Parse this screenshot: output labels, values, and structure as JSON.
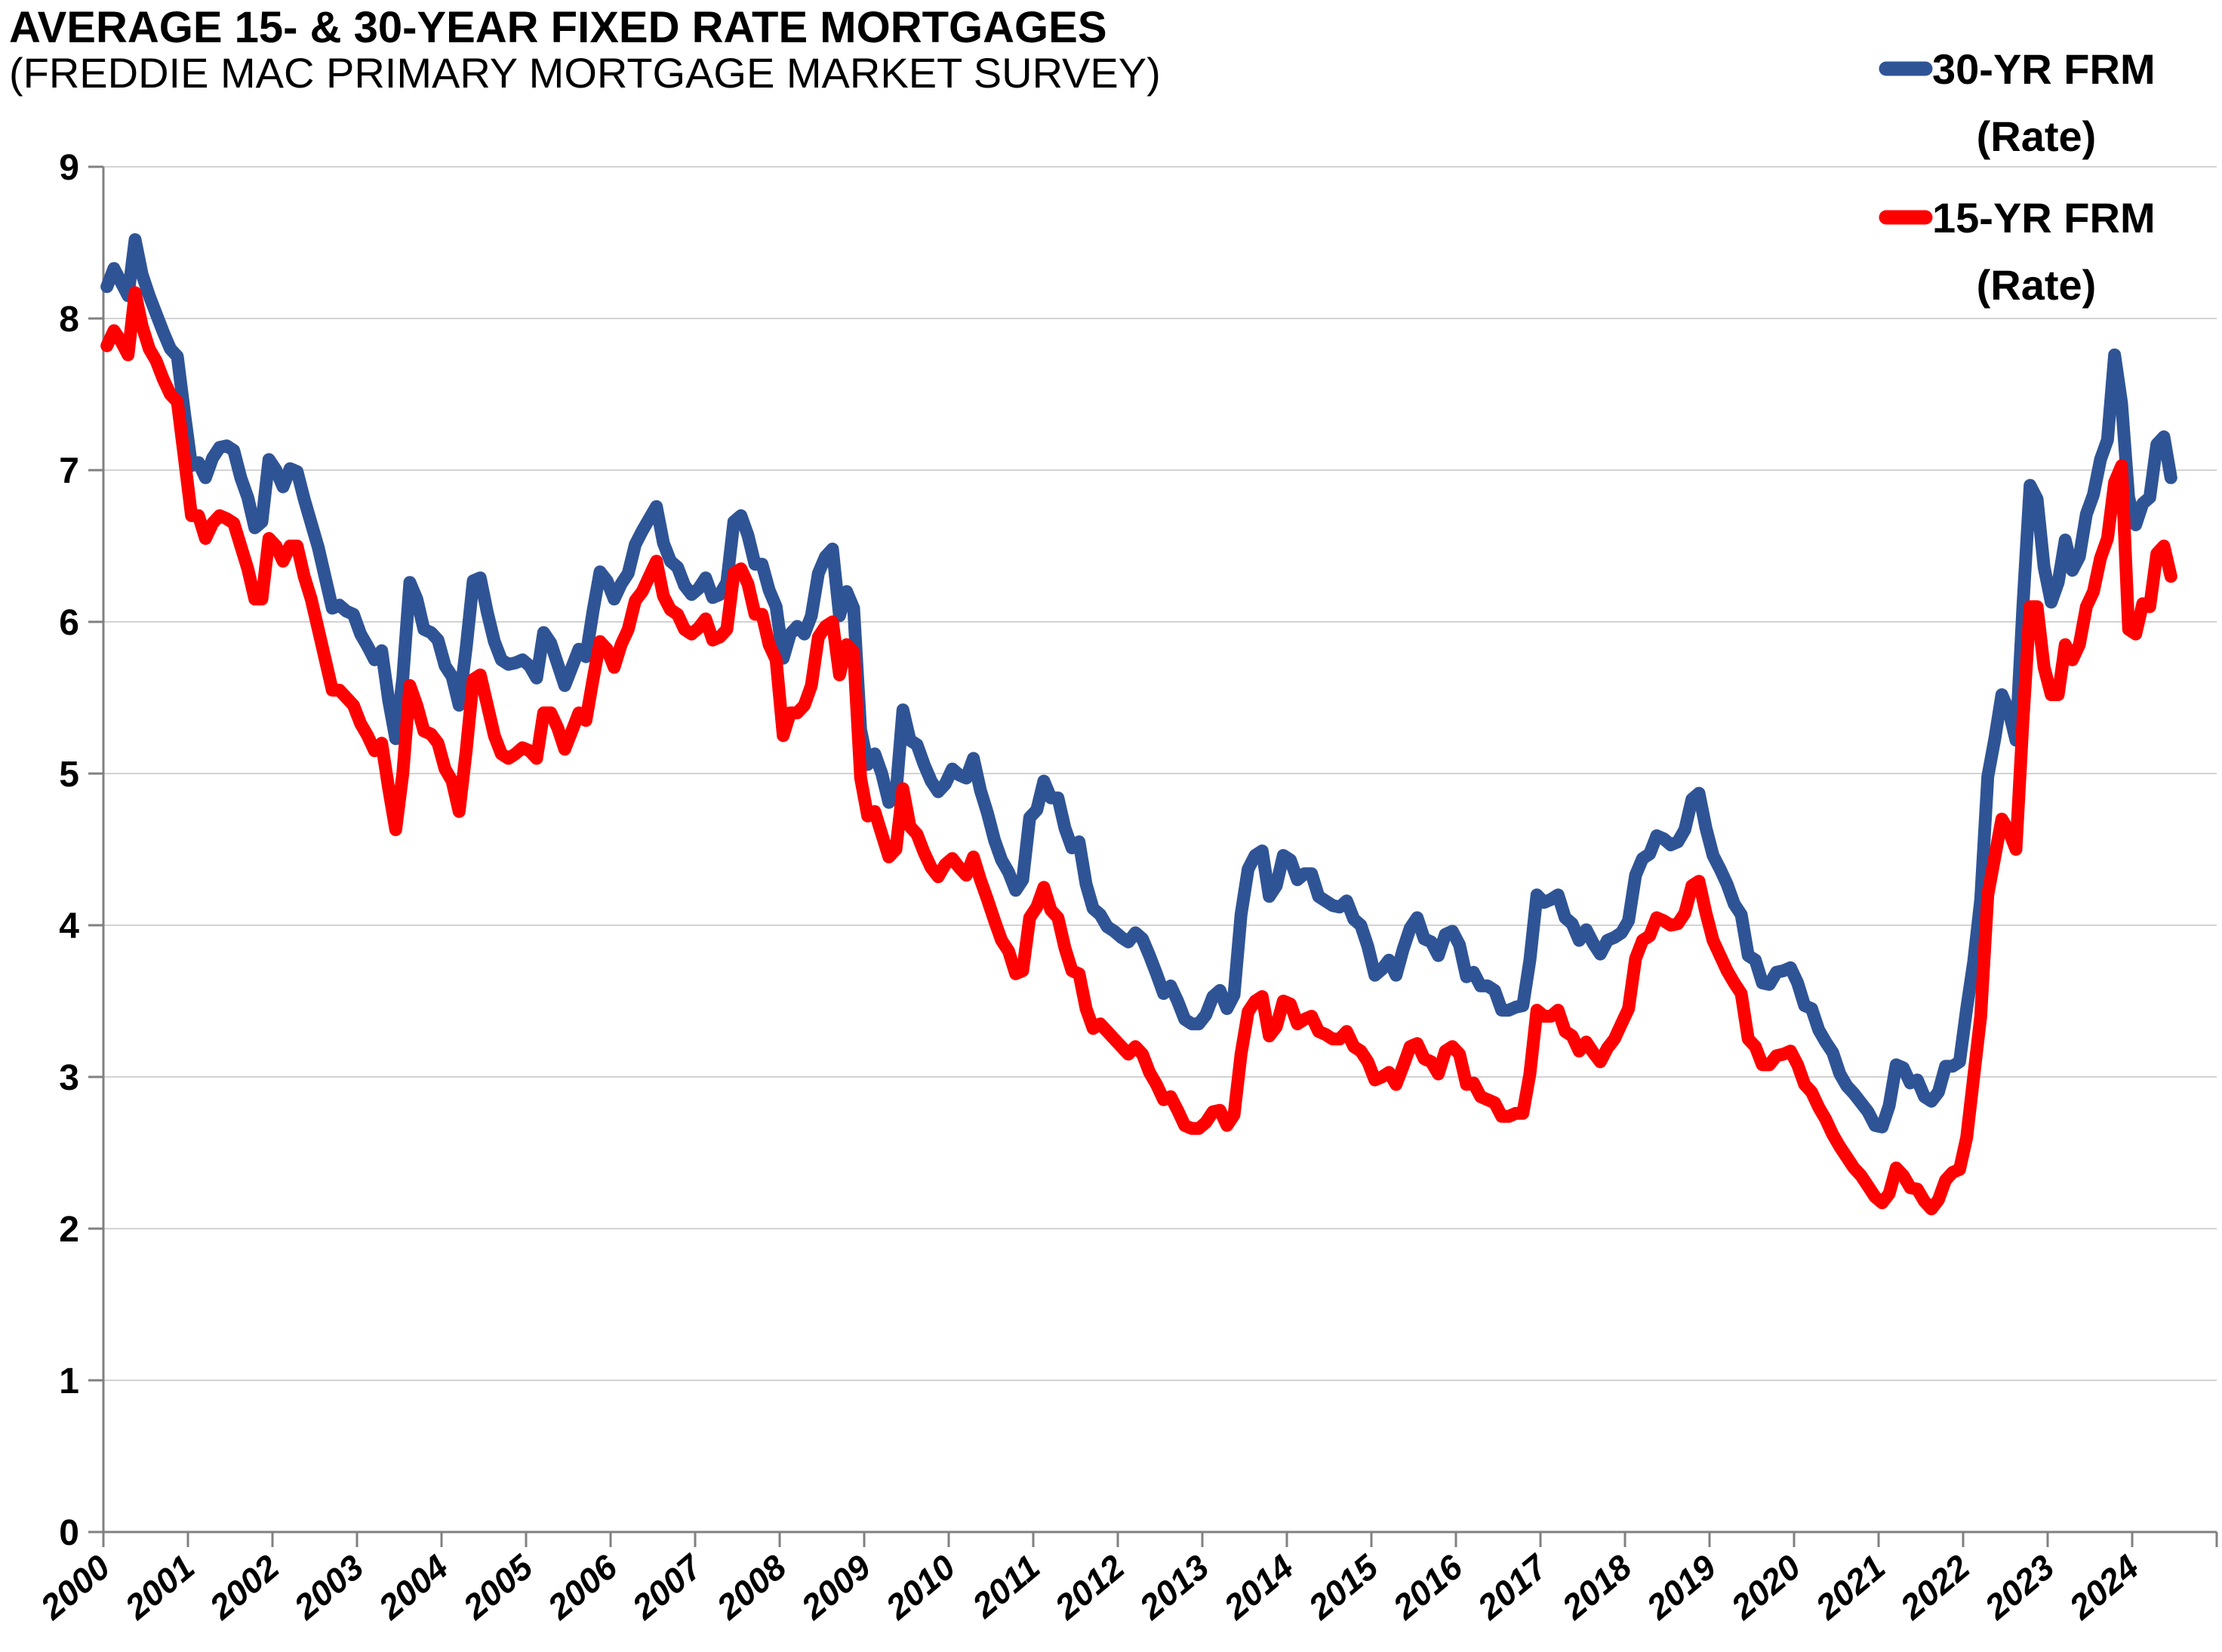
{
  "title": {
    "main": "AVERAGE 15- & 30-YEAR FIXED RATE MORTGAGES",
    "sub": "(FREDDIE MAC PRIMARY MORTGAGE MARKET SURVEY)"
  },
  "legend": {
    "items": [
      {
        "label": "30-YR FRM",
        "sublabel": "(Rate)",
        "color": "#2F5496"
      },
      {
        "label": "15-YR FRM",
        "sublabel": "(Rate)",
        "color": "#FF0000"
      }
    ]
  },
  "chart_data": {
    "type": "line",
    "title": "AVERAGE 15- & 30-YEAR FIXED RATE MORTGAGES",
    "subtitle": "(FREDDIE MAC PRIMARY MORTGAGE MARKET SURVEY)",
    "xlabel": "",
    "ylabel": "",
    "x": {
      "start_year": 2000,
      "frequency": "monthly",
      "tick_labels": [
        "2000",
        "2001",
        "2002",
        "2003",
        "2004",
        "2005",
        "2006",
        "2007",
        "2008",
        "2009",
        "2010",
        "2011",
        "2012",
        "2013",
        "2014",
        "2015",
        "2016",
        "2017",
        "2018",
        "2019",
        "2020",
        "2021",
        "2022",
        "2023",
        "2024"
      ]
    },
    "y": {
      "min": 0,
      "max": 9,
      "step": 1,
      "tick_labels": [
        "0",
        "1",
        "2",
        "3",
        "4",
        "5",
        "6",
        "7",
        "8",
        "9"
      ]
    },
    "grid": true,
    "legend_position": "top-right",
    "series": [
      {
        "name": "30-YR FRM (Rate)",
        "color": "#2F5496",
        "values": [
          8.21,
          8.33,
          8.24,
          8.15,
          8.52,
          8.29,
          8.15,
          8.03,
          7.91,
          7.8,
          7.75,
          7.38,
          7.03,
          7.05,
          6.95,
          7.08,
          7.15,
          7.16,
          7.13,
          6.95,
          6.82,
          6.62,
          6.66,
          7.07,
          7.0,
          6.89,
          7.01,
          6.99,
          6.81,
          6.65,
          6.49,
          6.29,
          6.09,
          6.11,
          6.07,
          6.05,
          5.92,
          5.84,
          5.75,
          5.81,
          5.48,
          5.23,
          5.63,
          6.26,
          6.15,
          5.95,
          5.93,
          5.88,
          5.71,
          5.64,
          5.45,
          5.83,
          6.27,
          6.29,
          6.06,
          5.87,
          5.75,
          5.72,
          5.73,
          5.75,
          5.71,
          5.63,
          5.93,
          5.86,
          5.72,
          5.58,
          5.7,
          5.82,
          5.77,
          6.07,
          6.33,
          6.27,
          6.15,
          6.25,
          6.32,
          6.51,
          6.6,
          6.68,
          6.76,
          6.52,
          6.4,
          6.36,
          6.24,
          6.18,
          6.22,
          6.29,
          6.16,
          6.18,
          6.26,
          6.66,
          6.7,
          6.57,
          6.38,
          6.38,
          6.21,
          6.1,
          5.76,
          5.92,
          5.97,
          5.92,
          6.04,
          6.32,
          6.43,
          6.48,
          6.04,
          6.2,
          6.09,
          5.29,
          5.06,
          5.13,
          5.0,
          4.81,
          4.86,
          5.42,
          5.22,
          5.19,
          5.06,
          4.95,
          4.88,
          4.93,
          5.03,
          4.99,
          4.97,
          5.1,
          4.89,
          4.74,
          4.56,
          4.43,
          4.35,
          4.23,
          4.3,
          4.71,
          4.76,
          4.95,
          4.84,
          4.84,
          4.64,
          4.51,
          4.55,
          4.27,
          4.11,
          4.07,
          3.99,
          3.96,
          3.92,
          3.89,
          3.95,
          3.91,
          3.8,
          3.68,
          3.55,
          3.6,
          3.5,
          3.38,
          3.35,
          3.35,
          3.41,
          3.53,
          3.57,
          3.45,
          3.54,
          4.07,
          4.37,
          4.46,
          4.49,
          4.19,
          4.26,
          4.46,
          4.43,
          4.3,
          4.34,
          4.34,
          4.19,
          4.16,
          4.13,
          4.12,
          4.16,
          4.04,
          4.0,
          3.86,
          3.67,
          3.71,
          3.77,
          3.67,
          3.84,
          3.98,
          4.05,
          3.91,
          3.89,
          3.8,
          3.94,
          3.96,
          3.87,
          3.66,
          3.69,
          3.6,
          3.6,
          3.57,
          3.44,
          3.44,
          3.46,
          3.47,
          3.77,
          4.2,
          4.15,
          4.17,
          4.2,
          4.05,
          4.01,
          3.9,
          3.97,
          3.88,
          3.81,
          3.9,
          3.92,
          3.95,
          4.03,
          4.33,
          4.44,
          4.47,
          4.59,
          4.57,
          4.53,
          4.55,
          4.63,
          4.83,
          4.87,
          4.64,
          4.46,
          4.37,
          4.27,
          4.14,
          4.07,
          3.8,
          3.77,
          3.62,
          3.61,
          3.69,
          3.7,
          3.72,
          3.62,
          3.47,
          3.45,
          3.31,
          3.23,
          3.16,
          3.02,
          2.94,
          2.89,
          2.83,
          2.77,
          2.68,
          2.67,
          2.81,
          3.08,
          3.06,
          2.96,
          2.98,
          2.87,
          2.84,
          2.9,
          3.07,
          3.07,
          3.1,
          3.45,
          3.76,
          4.17,
          4.98,
          5.23,
          5.52,
          5.41,
          5.22,
          6.11,
          6.9,
          6.81,
          6.36,
          6.13,
          6.26,
          6.54,
          6.34,
          6.43,
          6.71,
          6.84,
          7.07,
          7.2,
          7.76,
          7.44,
          6.82,
          6.64,
          6.78,
          6.82,
          7.17,
          7.22,
          6.95
        ]
      },
      {
        "name": "15-YR FRM (Rate)",
        "color": "#FF0000",
        "values": [
          7.82,
          7.92,
          7.85,
          7.76,
          8.17,
          7.95,
          7.8,
          7.72,
          7.6,
          7.5,
          7.45,
          7.08,
          6.7,
          6.7,
          6.55,
          6.65,
          6.7,
          6.68,
          6.65,
          6.5,
          6.35,
          6.15,
          6.15,
          6.55,
          6.5,
          6.4,
          6.5,
          6.5,
          6.3,
          6.15,
          5.95,
          5.75,
          5.55,
          5.55,
          5.5,
          5.45,
          5.33,
          5.25,
          5.15,
          5.2,
          4.9,
          4.63,
          5.0,
          5.58,
          5.45,
          5.28,
          5.26,
          5.2,
          5.03,
          4.95,
          4.75,
          5.15,
          5.62,
          5.65,
          5.45,
          5.25,
          5.13,
          5.1,
          5.13,
          5.17,
          5.15,
          5.1,
          5.4,
          5.4,
          5.3,
          5.16,
          5.28,
          5.4,
          5.35,
          5.62,
          5.87,
          5.82,
          5.7,
          5.85,
          5.95,
          6.14,
          6.2,
          6.3,
          6.4,
          6.17,
          6.08,
          6.05,
          5.95,
          5.92,
          5.96,
          6.02,
          5.88,
          5.9,
          5.95,
          6.32,
          6.35,
          6.25,
          6.05,
          6.05,
          5.85,
          5.75,
          5.25,
          5.4,
          5.4,
          5.45,
          5.58,
          5.9,
          5.97,
          6.0,
          5.65,
          5.85,
          5.8,
          4.97,
          4.72,
          4.75,
          4.6,
          4.45,
          4.5,
          4.9,
          4.65,
          4.6,
          4.48,
          4.38,
          4.32,
          4.4,
          4.44,
          4.38,
          4.33,
          4.45,
          4.3,
          4.17,
          4.03,
          3.9,
          3.83,
          3.68,
          3.7,
          4.05,
          4.12,
          4.25,
          4.1,
          4.05,
          3.85,
          3.7,
          3.68,
          3.45,
          3.32,
          3.35,
          3.3,
          3.25,
          3.2,
          3.15,
          3.2,
          3.15,
          3.03,
          2.95,
          2.85,
          2.87,
          2.78,
          2.68,
          2.66,
          2.66,
          2.7,
          2.77,
          2.78,
          2.68,
          2.75,
          3.15,
          3.43,
          3.5,
          3.53,
          3.27,
          3.33,
          3.5,
          3.48,
          3.35,
          3.38,
          3.4,
          3.3,
          3.28,
          3.25,
          3.25,
          3.3,
          3.2,
          3.17,
          3.1,
          2.98,
          3.0,
          3.03,
          2.95,
          3.07,
          3.2,
          3.22,
          3.12,
          3.1,
          3.02,
          3.17,
          3.2,
          3.15,
          2.95,
          2.96,
          2.87,
          2.85,
          2.83,
          2.74,
          2.74,
          2.76,
          2.76,
          3.02,
          3.44,
          3.4,
          3.4,
          3.44,
          3.3,
          3.27,
          3.17,
          3.23,
          3.16,
          3.1,
          3.19,
          3.25,
          3.35,
          3.45,
          3.78,
          3.9,
          3.93,
          4.05,
          4.03,
          4.0,
          4.01,
          4.08,
          4.26,
          4.29,
          4.08,
          3.9,
          3.8,
          3.7,
          3.62,
          3.55,
          3.25,
          3.2,
          3.08,
          3.08,
          3.14,
          3.15,
          3.17,
          3.08,
          2.95,
          2.9,
          2.8,
          2.72,
          2.62,
          2.54,
          2.47,
          2.4,
          2.35,
          2.28,
          2.21,
          2.17,
          2.23,
          2.4,
          2.35,
          2.27,
          2.26,
          2.18,
          2.13,
          2.19,
          2.32,
          2.37,
          2.39,
          2.6,
          3.0,
          3.4,
          4.2,
          4.45,
          4.7,
          4.62,
          4.5,
          5.35,
          6.1,
          6.1,
          5.7,
          5.52,
          5.52,
          5.85,
          5.75,
          5.85,
          6.1,
          6.2,
          6.42,
          6.55,
          6.92,
          7.03,
          5.95,
          5.92,
          6.12,
          6.1,
          6.45,
          6.5,
          6.3
        ]
      }
    ]
  }
}
